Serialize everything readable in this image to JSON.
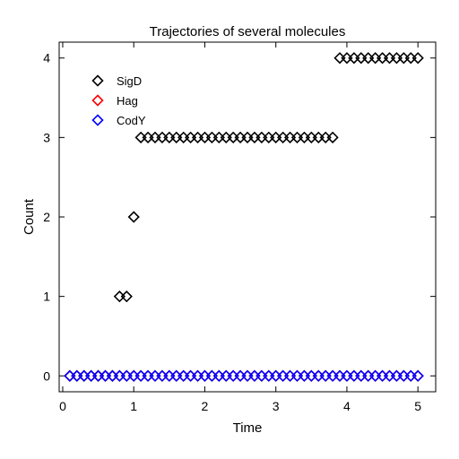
{
  "chart_data": {
    "type": "scatter",
    "title": "Trajectories of several molecules",
    "xlabel": "Time",
    "ylabel": "Count",
    "xlim": [
      -0.05,
      5.25
    ],
    "ylim": [
      -0.2,
      4.2
    ],
    "xticks": [
      0,
      1,
      2,
      3,
      4,
      5
    ],
    "yticks": [
      0,
      1,
      2,
      3,
      4
    ],
    "legend_position": "top-left",
    "marker": "diamond",
    "series": [
      {
        "name": "SigD",
        "color": "#000000",
        "x": [
          0.1,
          0.2,
          0.3,
          0.4,
          0.5,
          0.6,
          0.7,
          0.8,
          0.9,
          1.0,
          1.1,
          1.2,
          1.3,
          1.4,
          1.5,
          1.6,
          1.7,
          1.8,
          1.9,
          2.0,
          2.1,
          2.2,
          2.3,
          2.4,
          2.5,
          2.6,
          2.7,
          2.8,
          2.9,
          3.0,
          3.1,
          3.2,
          3.3,
          3.4,
          3.5,
          3.6,
          3.7,
          3.8,
          3.9,
          4.0,
          4.1,
          4.2,
          4.3,
          4.4,
          4.5,
          4.6,
          4.7,
          4.8,
          4.9,
          5.0
        ],
        "y": [
          0,
          0,
          0,
          0,
          0,
          0,
          0,
          1,
          1,
          2,
          3,
          3,
          3,
          3,
          3,
          3,
          3,
          3,
          3,
          3,
          3,
          3,
          3,
          3,
          3,
          3,
          3,
          3,
          3,
          3,
          3,
          3,
          3,
          3,
          3,
          3,
          3,
          3,
          4,
          4,
          4,
          4,
          4,
          4,
          4,
          4,
          4,
          4,
          4,
          4
        ]
      },
      {
        "name": "Hag",
        "color": "#ff0000",
        "x": [
          0.1,
          0.2,
          0.3,
          0.4,
          0.5,
          0.6,
          0.7,
          0.8,
          0.9,
          1.0,
          1.1,
          1.2,
          1.3,
          1.4,
          1.5,
          1.6,
          1.7,
          1.8,
          1.9,
          2.0,
          2.1,
          2.2,
          2.3,
          2.4,
          2.5,
          2.6,
          2.7,
          2.8,
          2.9,
          3.0,
          3.1,
          3.2,
          3.3,
          3.4,
          3.5,
          3.6,
          3.7,
          3.8,
          3.9,
          4.0,
          4.1,
          4.2,
          4.3,
          4.4,
          4.5,
          4.6,
          4.7,
          4.8,
          4.9,
          5.0
        ],
        "y": [
          0,
          0,
          0,
          0,
          0,
          0,
          0,
          0,
          0,
          0,
          0,
          0,
          0,
          0,
          0,
          0,
          0,
          0,
          0,
          0,
          0,
          0,
          0,
          0,
          0,
          0,
          0,
          0,
          0,
          0,
          0,
          0,
          0,
          0,
          0,
          0,
          0,
          0,
          0,
          0,
          0,
          0,
          0,
          0,
          0,
          0,
          0,
          0,
          0,
          0
        ]
      },
      {
        "name": "CodY",
        "color": "#0000ff",
        "x": [
          0.1,
          0.2,
          0.3,
          0.4,
          0.5,
          0.6,
          0.7,
          0.8,
          0.9,
          1.0,
          1.1,
          1.2,
          1.3,
          1.4,
          1.5,
          1.6,
          1.7,
          1.8,
          1.9,
          2.0,
          2.1,
          2.2,
          2.3,
          2.4,
          2.5,
          2.6,
          2.7,
          2.8,
          2.9,
          3.0,
          3.1,
          3.2,
          3.3,
          3.4,
          3.5,
          3.6,
          3.7,
          3.8,
          3.9,
          4.0,
          4.1,
          4.2,
          4.3,
          4.4,
          4.5,
          4.6,
          4.7,
          4.8,
          4.9,
          5.0
        ],
        "y": [
          0,
          0,
          0,
          0,
          0,
          0,
          0,
          0,
          0,
          0,
          0,
          0,
          0,
          0,
          0,
          0,
          0,
          0,
          0,
          0,
          0,
          0,
          0,
          0,
          0,
          0,
          0,
          0,
          0,
          0,
          0,
          0,
          0,
          0,
          0,
          0,
          0,
          0,
          0,
          0,
          0,
          0,
          0,
          0,
          0,
          0,
          0,
          0,
          0,
          0
        ]
      }
    ]
  }
}
